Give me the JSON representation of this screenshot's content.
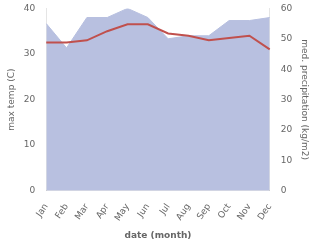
{
  "chart_data": {
    "type": "line",
    "categories": [
      "Jan",
      "Feb",
      "Mar",
      "Apr",
      "May",
      "Jun",
      "Jul",
      "Aug",
      "Sep",
      "Oct",
      "Nov",
      "Dec"
    ],
    "xlabel": "date (month)",
    "ylabel": "max temp (C)",
    "y2label": "med. precipitation (kg/m2)",
    "series": [
      {
        "type": "area",
        "axis": "y2",
        "color": "#b8c0e0",
        "values": [
          55,
          47,
          57,
          57,
          60,
          57,
          50,
          51,
          51,
          56,
          56,
          57
        ]
      },
      {
        "type": "line",
        "color": "#c0504d",
        "values": [
          32.5,
          32.5,
          33.0,
          35.0,
          36.5,
          36.5,
          34.5,
          34.0,
          33.0,
          33.5,
          34.0,
          31.0
        ]
      }
    ],
    "ylim": [
      0,
      40
    ],
    "yticks": [
      0,
      10,
      20,
      30,
      40
    ],
    "y2lim": [
      0,
      60
    ],
    "y2ticks": [
      0,
      10,
      20,
      30,
      40,
      50,
      60
    ],
    "grid": false
  }
}
